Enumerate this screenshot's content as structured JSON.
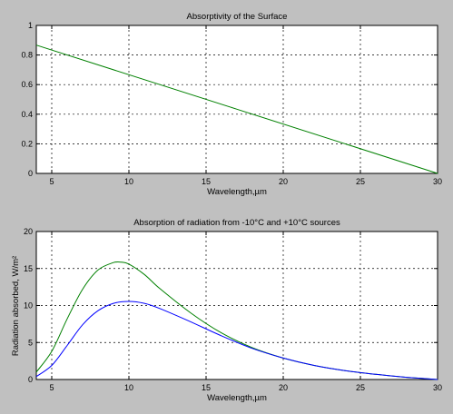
{
  "chart_data": [
    {
      "type": "line",
      "title": "Absorptivity of the Surface",
      "xlabel": "Wavelength,µm",
      "ylabel": "",
      "xlim": [
        4,
        30
      ],
      "ylim": [
        0,
        1
      ],
      "xticks": [
        5,
        10,
        15,
        20,
        25,
        30
      ],
      "yticks": [
        0,
        0.2,
        0.4,
        0.6,
        0.8,
        1
      ],
      "xtick_labels": [
        "5",
        "10",
        "15",
        "20",
        "25",
        "30"
      ],
      "ytick_labels": [
        "0",
        "0.2",
        "0.4",
        "0.6",
        "0.8",
        "1"
      ],
      "grid": true,
      "series": [
        {
          "color": "#008000",
          "x": [
            4,
            30
          ],
          "y": [
            0.867,
            0
          ]
        }
      ]
    },
    {
      "type": "line",
      "title": "Absorption of radiation from -10°C and +10°C sources",
      "xlabel": "Wavelength,µm",
      "ylabel": "Radiation absorbed, W/m²",
      "xlim": [
        4,
        30
      ],
      "ylim": [
        0,
        20
      ],
      "xticks": [
        5,
        10,
        15,
        20,
        25,
        30
      ],
      "yticks": [
        0,
        5,
        10,
        15,
        20
      ],
      "xtick_labels": [
        "5",
        "10",
        "15",
        "20",
        "25",
        "30"
      ],
      "ytick_labels": [
        "0",
        "5",
        "10",
        "15",
        "20"
      ],
      "grid": true,
      "series": [
        {
          "color": "#008000",
          "x": [
            4,
            5,
            6,
            7,
            8,
            9,
            9.5,
            10,
            11,
            12,
            14,
            16,
            18,
            20,
            22,
            24,
            26,
            28,
            30
          ],
          "y": [
            1.0,
            3.8,
            8.2,
            12.2,
            14.8,
            15.8,
            15.85,
            15.6,
            14.2,
            12.3,
            9.0,
            6.3,
            4.3,
            2.9,
            1.9,
            1.2,
            0.7,
            0.3,
            0
          ]
        },
        {
          "color": "#0000ff",
          "x": [
            4,
            5,
            6,
            7,
            8,
            9,
            10,
            11,
            12,
            14,
            16,
            18,
            20,
            22,
            24,
            26,
            28,
            30
          ],
          "y": [
            0.4,
            1.9,
            4.6,
            7.4,
            9.3,
            10.3,
            10.55,
            10.3,
            9.6,
            7.8,
            5.9,
            4.2,
            2.9,
            1.9,
            1.2,
            0.7,
            0.3,
            0
          ]
        }
      ]
    }
  ]
}
